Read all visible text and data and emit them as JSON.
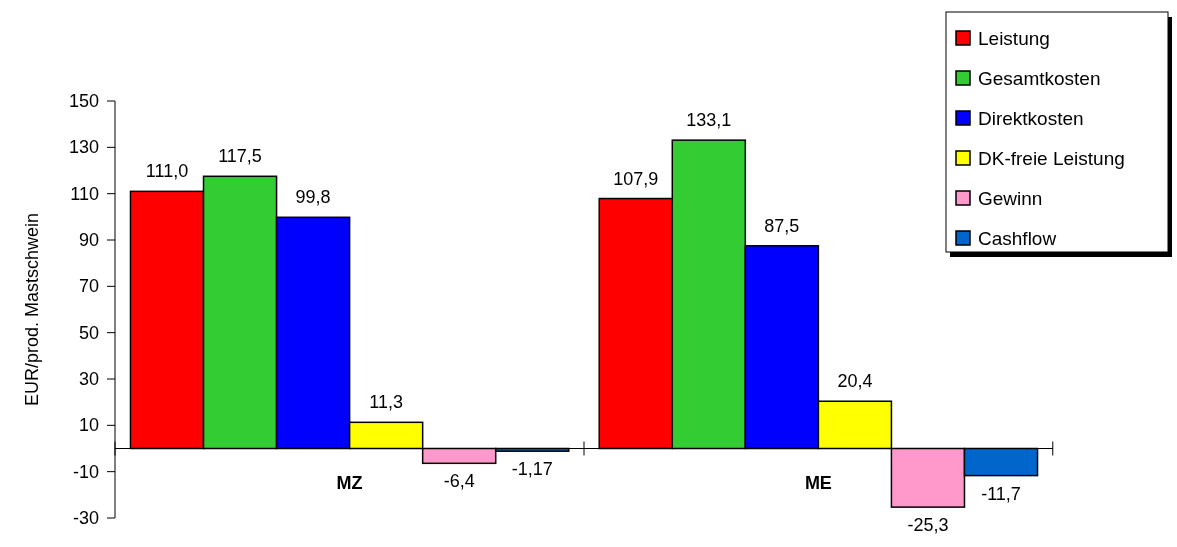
{
  "chart_data": {
    "type": "bar",
    "ylabel": "EUR/prod. Mastschwein",
    "categories": [
      "MZ",
      "ME"
    ],
    "series": [
      {
        "name": "Leistung",
        "color": "#ff0000",
        "values": [
          111.0,
          107.9
        ],
        "value_labels": [
          "111,0",
          "107,9"
        ]
      },
      {
        "name": "Gesamtkosten",
        "color": "#33cc33",
        "values": [
          117.5,
          133.1
        ],
        "value_labels": [
          "117,5",
          "133,1"
        ]
      },
      {
        "name": "Direktkosten",
        "color": "#0000ff",
        "values": [
          99.8,
          87.5
        ],
        "value_labels": [
          "99,8",
          "87,5"
        ]
      },
      {
        "name": "DK-freie Leistung",
        "color": "#ffff00",
        "values": [
          11.3,
          20.4
        ],
        "value_labels": [
          "11,3",
          "20,4"
        ]
      },
      {
        "name": "Gewinn",
        "color": "#ff99cc",
        "values": [
          -6.4,
          -25.3
        ],
        "value_labels": [
          "-6,4",
          "-25,3"
        ]
      },
      {
        "name": "Cashflow",
        "color": "#0066cc",
        "values": [
          -1.17,
          -11.7
        ],
        "value_labels": [
          "-1,17",
          "-11,7"
        ]
      }
    ],
    "ylim": [
      -30,
      150
    ],
    "yticks": [
      -30,
      -10,
      10,
      30,
      50,
      70,
      90,
      110,
      130,
      150
    ],
    "grid": false,
    "legend": "top right"
  }
}
